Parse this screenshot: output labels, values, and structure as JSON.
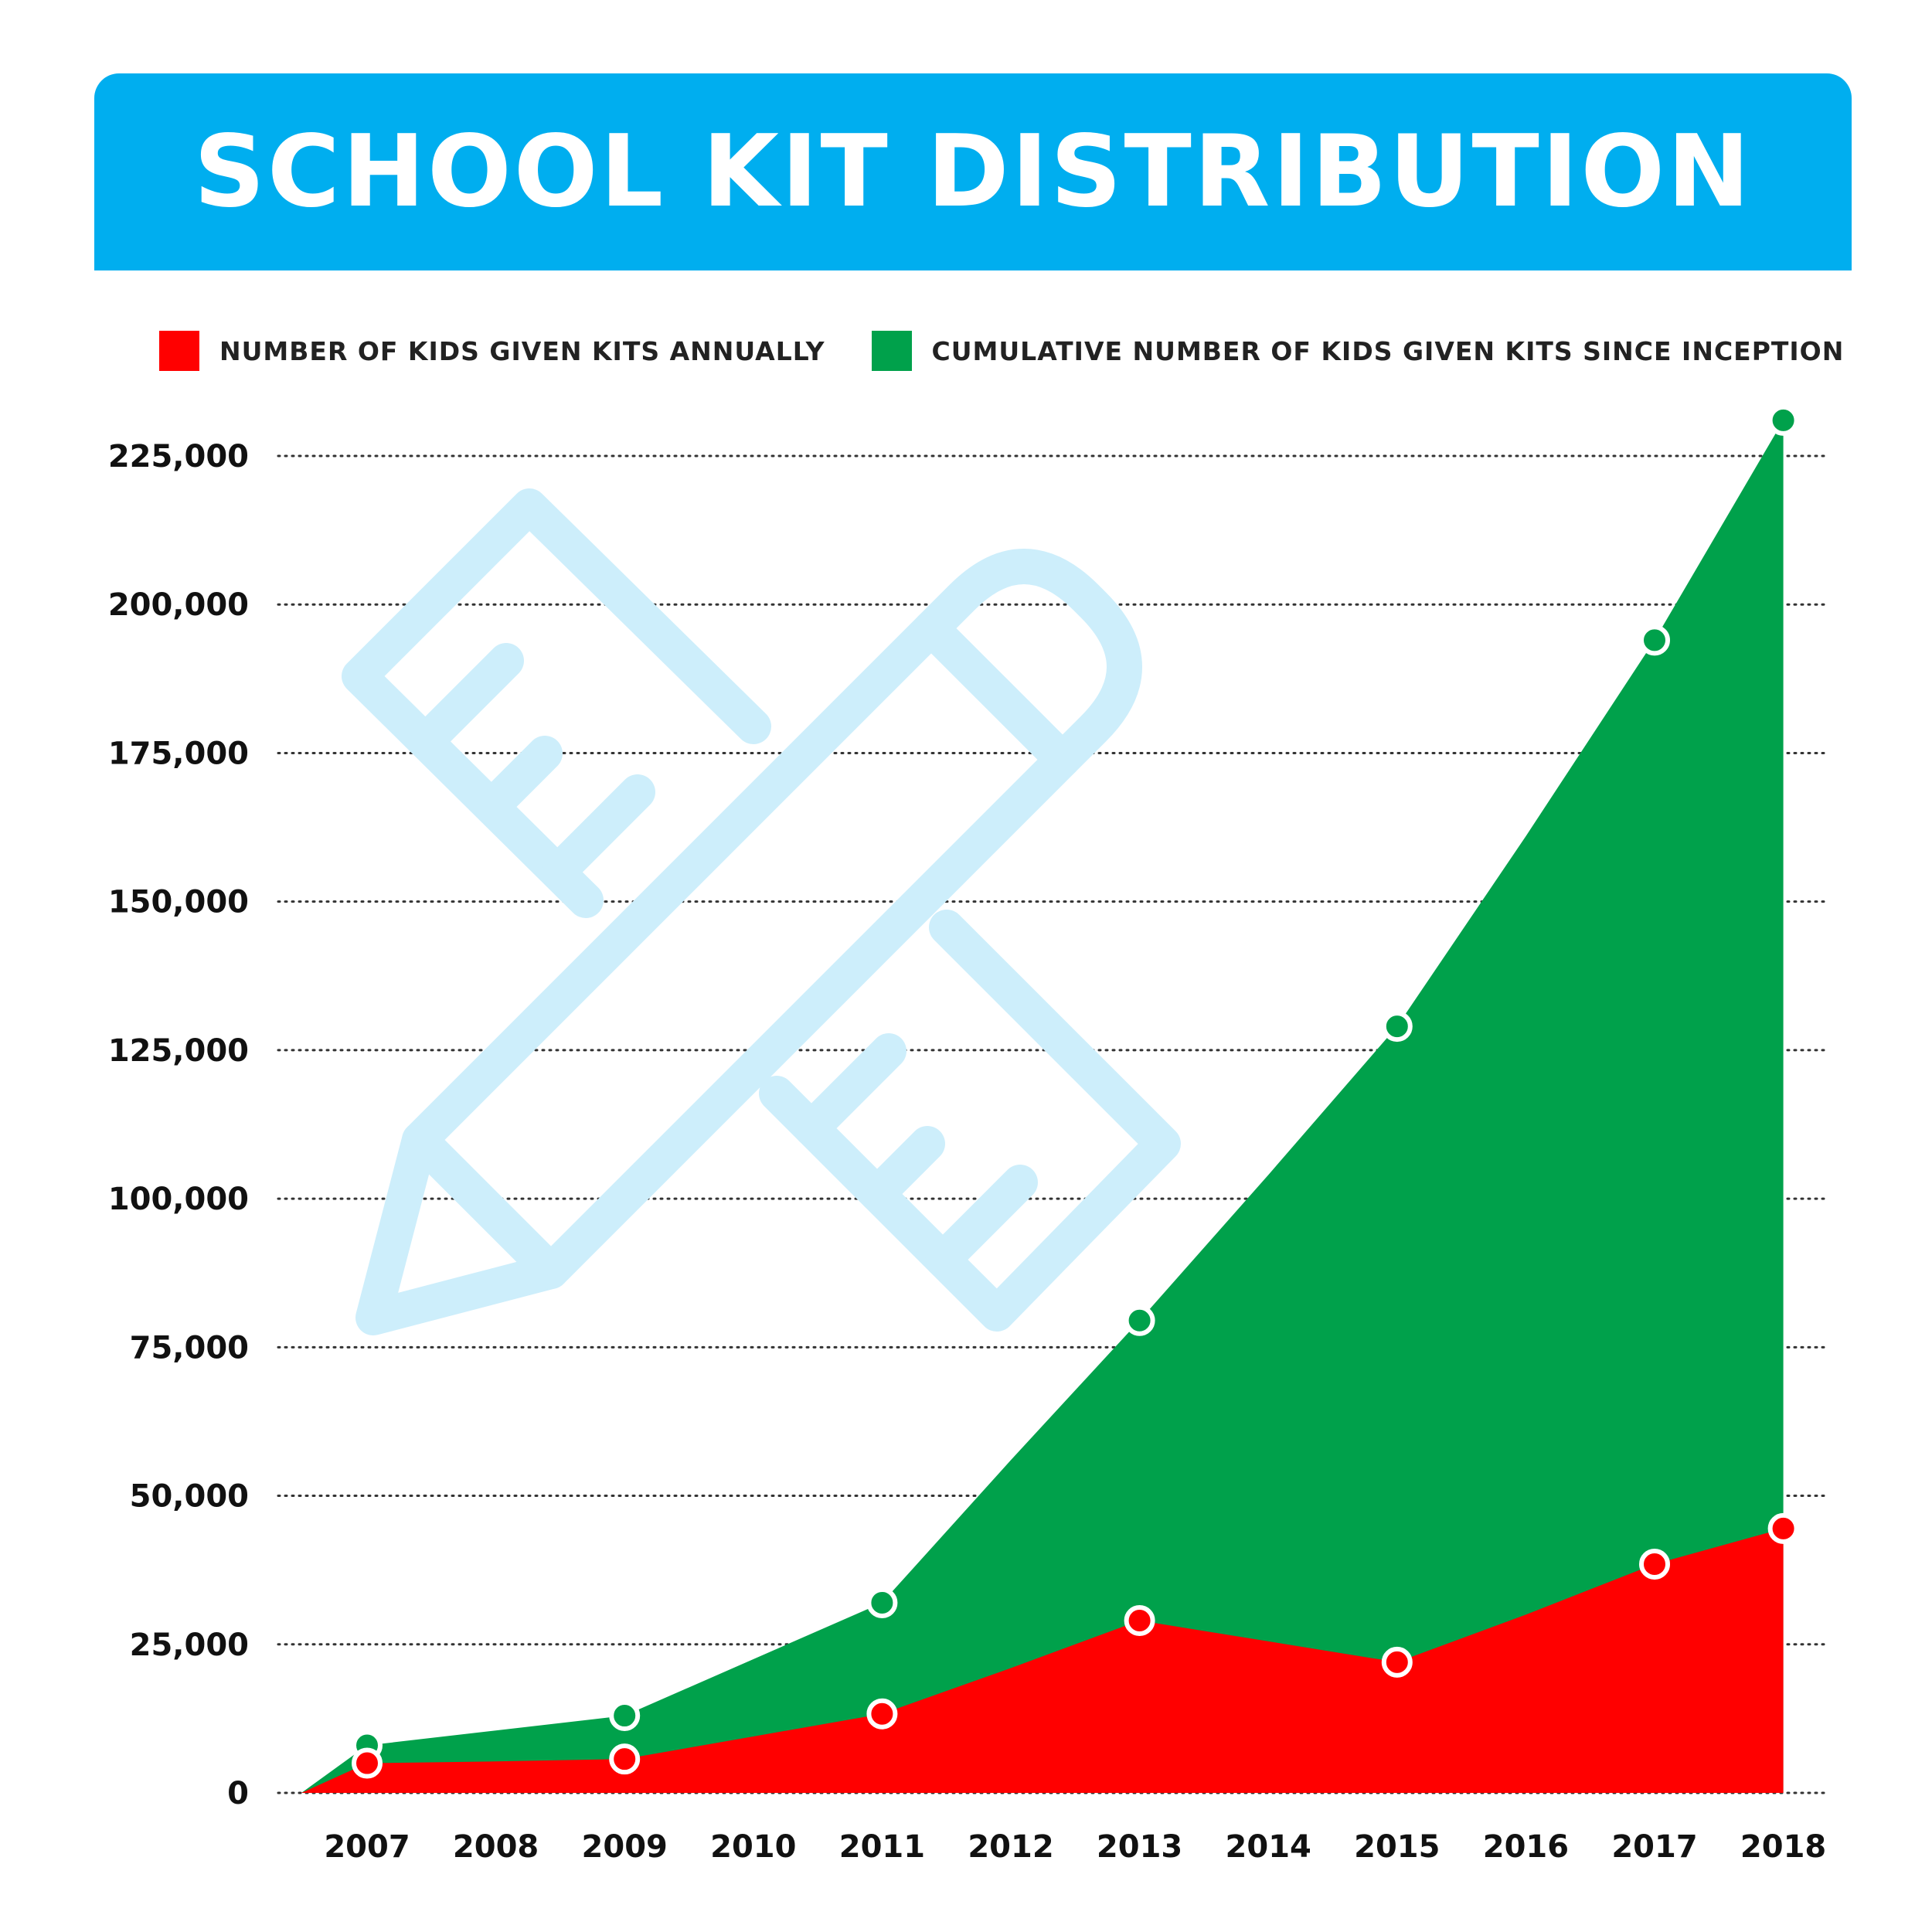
{
  "header": {
    "title": "SCHOOL KIT DISTRIBUTION"
  },
  "colors": {
    "header_bg": "#00aeef",
    "annual": "#ff0000",
    "cumulative": "#00a14b",
    "watermark": "#cdeefb"
  },
  "decoration": {
    "watermark_icon": "pencil-and-ruler-icon"
  },
  "chart_data": {
    "type": "area",
    "title": "SCHOOL KIT DISTRIBUTION",
    "categories": [
      "2007",
      "2008",
      "2009",
      "2010",
      "2011",
      "2012",
      "2013",
      "2014",
      "2015",
      "2016",
      "2017",
      "2018"
    ],
    "ylim": [
      0,
      230000
    ],
    "yticks": [
      0,
      25000,
      50000,
      75000,
      100000,
      125000,
      150000,
      175000,
      200000,
      225000
    ],
    "ytick_labels": [
      "0",
      "25,000",
      "50,000",
      "75,000",
      "100,000",
      "125,000",
      "150,000",
      "175,000",
      "200,000",
      "225,000"
    ],
    "grid": "horizontal dotted",
    "legend_position": "top",
    "marker_years": [
      "2007",
      "2009",
      "2011",
      "2013",
      "2015",
      "2017",
      "2018"
    ],
    "series": [
      {
        "name": "NUMBER OF KIDS GIVEN KITS ANNUALLY",
        "color": "#ff0000",
        "values": [
          5000,
          5300,
          5700,
          9500,
          13300,
          21000,
          29000,
          25500,
          22000,
          30000,
          38500,
          44500
        ]
      },
      {
        "name": "CUMULATIVE NUMBER OF KIDS GIVEN KITS SINCE INCEPTION",
        "color": "#00a14b",
        "values": [
          8000,
          10500,
          13000,
          22500,
          32000,
          56000,
          79500,
          104000,
          129000,
          161000,
          194000,
          231000
        ]
      }
    ]
  }
}
